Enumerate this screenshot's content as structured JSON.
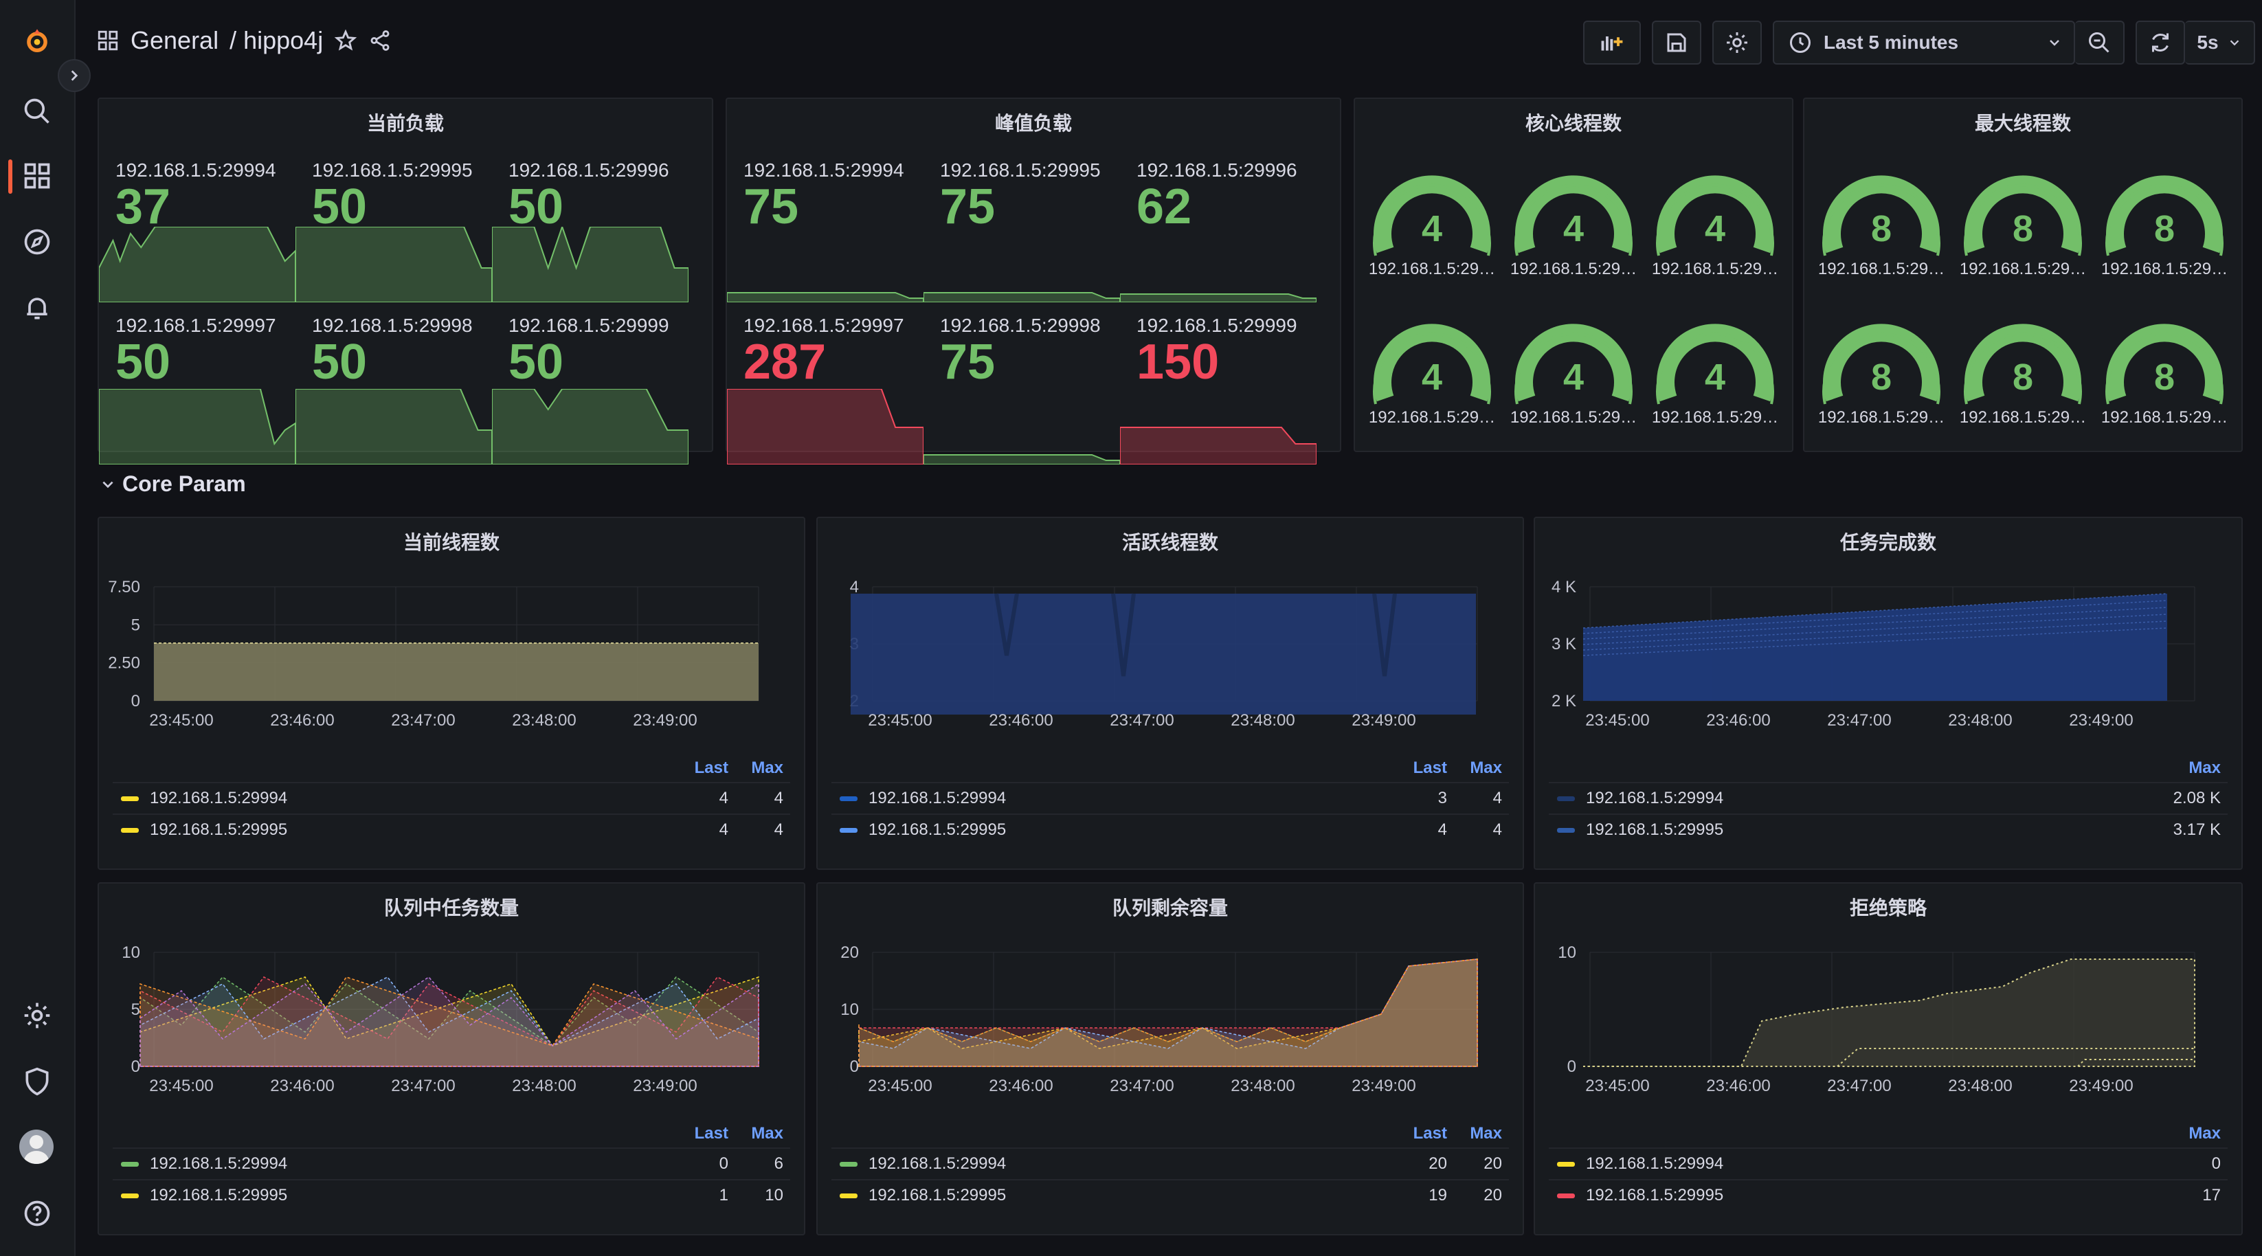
{
  "breadcrumb": {
    "folder": "General",
    "dashboard": "/ hippo4j"
  },
  "toolbar": {
    "time_range": "Last 5 minutes",
    "refresh_interval": "5s"
  },
  "colors": {
    "green": "#73bf69",
    "red": "#f2495c",
    "blue": "#5794f2",
    "yellow": "#fade2a",
    "legend_header": "#6e9fff"
  },
  "panels": {
    "current_load": {
      "title": "当前负载",
      "stats": [
        {
          "label": "192.168.1.5:29994",
          "value": "37",
          "color": "#73bf69"
        },
        {
          "label": "192.168.1.5:29995",
          "value": "50",
          "color": "#73bf69"
        },
        {
          "label": "192.168.1.5:29996",
          "value": "50",
          "color": "#73bf69"
        },
        {
          "label": "192.168.1.5:29997",
          "value": "50",
          "color": "#73bf69"
        },
        {
          "label": "192.168.1.5:29998",
          "value": "50",
          "color": "#73bf69"
        },
        {
          "label": "192.168.1.5:29999",
          "value": "50",
          "color": "#73bf69"
        }
      ]
    },
    "peak_load": {
      "title": "峰值负载",
      "stats": [
        {
          "label": "192.168.1.5:29994",
          "value": "75",
          "color": "#73bf69"
        },
        {
          "label": "192.168.1.5:29995",
          "value": "75",
          "color": "#73bf69"
        },
        {
          "label": "192.168.1.5:29996",
          "value": "62",
          "color": "#73bf69"
        },
        {
          "label": "192.168.1.5:29997",
          "value": "287",
          "color": "#f2495c"
        },
        {
          "label": "192.168.1.5:29998",
          "value": "75",
          "color": "#73bf69"
        },
        {
          "label": "192.168.1.5:29999",
          "value": "150",
          "color": "#f2495c"
        }
      ]
    },
    "core_threads": {
      "title": "核心线程数",
      "gauges": [
        {
          "label": "192.168.1.5:29…",
          "value": "4"
        },
        {
          "label": "192.168.1.5:29…",
          "value": "4"
        },
        {
          "label": "192.168.1.5:29…",
          "value": "4"
        },
        {
          "label": "192.168.1.5:29…",
          "value": "4"
        },
        {
          "label": "192.168.1.5:29…",
          "value": "4"
        },
        {
          "label": "192.168.1.5:29…",
          "value": "4"
        }
      ]
    },
    "max_threads": {
      "title": "最大线程数",
      "gauges": [
        {
          "label": "192.168.1.5:29…",
          "value": "8"
        },
        {
          "label": "192.168.1.5:29…",
          "value": "8"
        },
        {
          "label": "192.168.1.5:29…",
          "value": "8"
        },
        {
          "label": "192.168.1.5:29…",
          "value": "8"
        },
        {
          "label": "192.168.1.5:29…",
          "value": "8"
        },
        {
          "label": "192.168.1.5:29…",
          "value": "8"
        }
      ]
    }
  },
  "row": {
    "title": "Core Param"
  },
  "timeseries": [
    {
      "title": "当前线程数",
      "y_ticks": [
        "7.50",
        "5",
        "2.50",
        "0"
      ],
      "x_ticks": [
        "23:45:00",
        "23:46:00",
        "23:47:00",
        "23:48:00",
        "23:49:00"
      ],
      "cols": [
        "Last",
        "Max"
      ],
      "rows": [
        {
          "name": "192.168.1.5:29994",
          "color": "#fade2a",
          "v1": "4",
          "v2": "4"
        },
        {
          "name": "192.168.1.5:29995",
          "color": "#fade2a",
          "v1": "4",
          "v2": "4"
        }
      ]
    },
    {
      "title": "活跃线程数",
      "y_ticks": [
        "4",
        "3",
        "2"
      ],
      "x_ticks": [
        "23:45:00",
        "23:46:00",
        "23:47:00",
        "23:48:00",
        "23:49:00"
      ],
      "cols": [
        "Last",
        "Max"
      ],
      "rows": [
        {
          "name": "192.168.1.5:29994",
          "color": "#1f60c4",
          "v1": "3",
          "v2": "4"
        },
        {
          "name": "192.168.1.5:29995",
          "color": "#5794f2",
          "v1": "4",
          "v2": "4"
        }
      ]
    },
    {
      "title": "任务完成数",
      "y_ticks": [
        "4 K",
        "3 K",
        "2 K"
      ],
      "x_ticks": [
        "23:45:00",
        "23:46:00",
        "23:47:00",
        "23:48:00",
        "23:49:00"
      ],
      "cols": [
        "",
        "Max"
      ],
      "rows": [
        {
          "name": "192.168.1.5:29994",
          "color": "#1f3a6e",
          "v1": "",
          "v2": "2.08 K"
        },
        {
          "name": "192.168.1.5:29995",
          "color": "#2f5ca8",
          "v1": "",
          "v2": "3.17 K"
        }
      ]
    },
    {
      "title": "队列中任务数量",
      "y_ticks": [
        "10",
        "5",
        "0"
      ],
      "x_ticks": [
        "23:45:00",
        "23:46:00",
        "23:47:00",
        "23:48:00",
        "23:49:00"
      ],
      "cols": [
        "Last",
        "Max"
      ],
      "rows": [
        {
          "name": "192.168.1.5:29994",
          "color": "#73bf69",
          "v1": "0",
          "v2": "6"
        },
        {
          "name": "192.168.1.5:29995",
          "color": "#fade2a",
          "v1": "1",
          "v2": "10"
        }
      ]
    },
    {
      "title": "队列剩余容量",
      "y_ticks": [
        "20",
        "10",
        "0"
      ],
      "x_ticks": [
        "23:45:00",
        "23:46:00",
        "23:47:00",
        "23:48:00",
        "23:49:00"
      ],
      "cols": [
        "Last",
        "Max"
      ],
      "rows": [
        {
          "name": "192.168.1.5:29994",
          "color": "#73bf69",
          "v1": "20",
          "v2": "20"
        },
        {
          "name": "192.168.1.5:29995",
          "color": "#fade2a",
          "v1": "19",
          "v2": "20"
        }
      ]
    },
    {
      "title": "拒绝策略",
      "y_ticks": [
        "10",
        "0"
      ],
      "x_ticks": [
        "23:45:00",
        "23:46:00",
        "23:47:00",
        "23:48:00",
        "23:49:00"
      ],
      "cols": [
        "",
        "Max"
      ],
      "rows": [
        {
          "name": "192.168.1.5:29994",
          "color": "#fade2a",
          "v1": "",
          "v2": "0"
        },
        {
          "name": "192.168.1.5:29995",
          "color": "#f2495c",
          "v1": "",
          "v2": "17"
        }
      ]
    }
  ]
}
